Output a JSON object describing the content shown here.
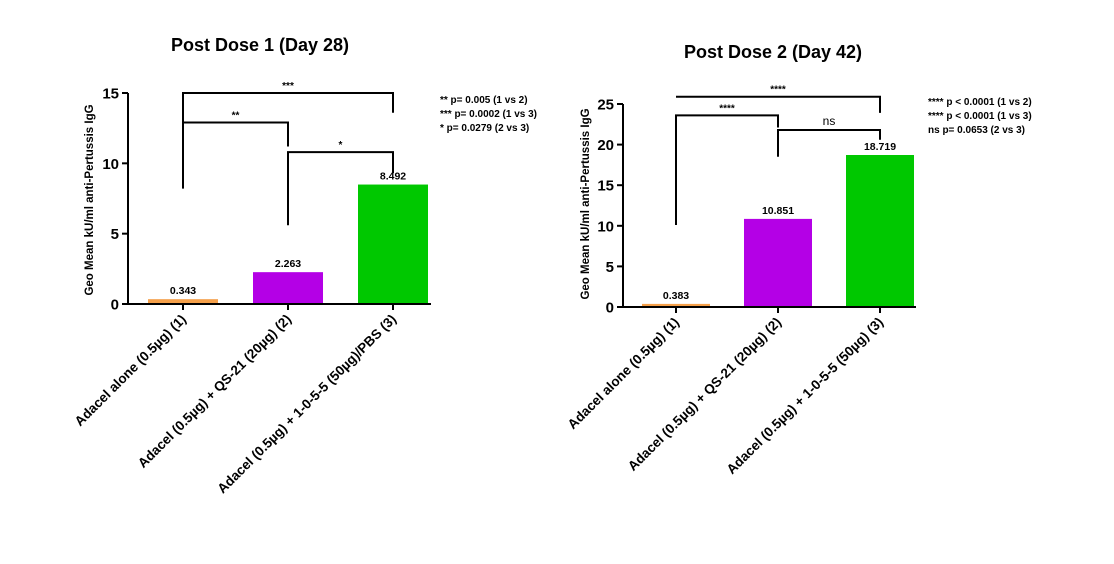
{
  "chart_data": [
    {
      "type": "bar",
      "title": "Post Dose 1 (Day 28)",
      "xlabel": "",
      "ylabel": "Geo Mean kU/ml anti-Pertussis IgG",
      "ylim": [
        0,
        15
      ],
      "yticks": [
        0,
        5,
        10,
        15
      ],
      "grid": false,
      "categories": [
        "Adacel alone (0.5µg) (1)",
        "Adacel (0.5µg) + QS-21 (20µg) (2)",
        "Adacel (0.5µg) + 1-0-5-5 (50µg)/PBS (3)"
      ],
      "values": [
        0.343,
        2.263,
        8.492
      ],
      "data_labels": [
        "0.343",
        "2.263",
        "8.492"
      ],
      "colors": [
        "#f5a04a",
        "#b400e6",
        "#00c800"
      ],
      "significance": [
        {
          "from": 0,
          "to": 2,
          "label": "***",
          "y": 15
        },
        {
          "from": 0,
          "to": 1,
          "label": "**",
          "y": 12.9
        },
        {
          "from": 1,
          "to": 2,
          "label": "*",
          "y": 10.8
        }
      ],
      "bracket_ends": [
        {
          "group": 0,
          "y_bottom": 8.2
        },
        {
          "group": 1,
          "y_bottom": 5.6
        },
        {
          "group": 2,
          "y_bottom": 9.3
        }
      ],
      "stat_notes": [
        "**  p= 0.005 (1 vs 2)",
        "*** p= 0.0002 (1 vs 3)",
        "*    p= 0.0279 (2 vs 3)"
      ]
    },
    {
      "type": "bar",
      "title": "Post Dose 2  (Day 42)",
      "xlabel": "",
      "ylabel": "Geo Mean kU/ml anti-Pertussis IgG",
      "ylim": [
        0,
        25
      ],
      "yticks": [
        0,
        5,
        10,
        15,
        20,
        25
      ],
      "grid": false,
      "categories": [
        "Adacel alone (0.5µg) (1)",
        "Adacel (0.5µg) + QS-21 (20µg) (2)",
        "Adacel (0.5µg) + 1-0-5-5 (50µg) (3)"
      ],
      "values": [
        0.383,
        10.851,
        18.719
      ],
      "data_labels": [
        "0.383",
        "10.851",
        "18.719"
      ],
      "colors": [
        "#f5a04a",
        "#b400e6",
        "#00c800"
      ],
      "significance": [
        {
          "from": 0,
          "to": 2,
          "label": "****",
          "y": 25.9
        },
        {
          "from": 0,
          "to": 1,
          "label": "****",
          "y": 23.6
        },
        {
          "from": 1,
          "to": 2,
          "label": "ns",
          "y": 21.8
        }
      ],
      "bracket_ends": [
        {
          "group": 0,
          "y_bottom": 10.1
        },
        {
          "group": 1,
          "y_bottom": 18.5
        },
        {
          "group": 2,
          "y_bottom": 20.6
        }
      ],
      "stat_notes": [
        "**** p < 0.0001 (1 vs 2)",
        "**** p < 0.0001 (1 vs 3)",
        "ns  p= 0.0653 (2 vs 3)"
      ]
    }
  ]
}
